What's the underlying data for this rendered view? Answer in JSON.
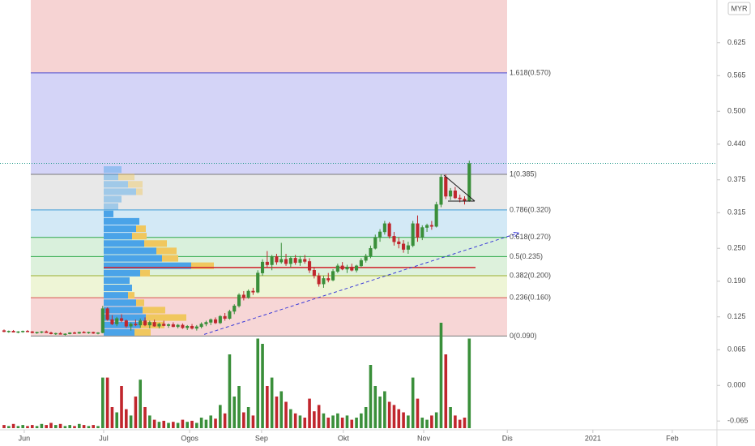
{
  "chart_data": {
    "type": "candlestick",
    "currency": "MYR",
    "xlim": [
      -0.86,
      151.7
    ],
    "xticks": [
      {
        "value": 4.3,
        "label": "Jun"
      },
      {
        "value": 21.2,
        "label": "Jul"
      },
      {
        "value": 39.5,
        "label": "Ogos"
      },
      {
        "value": 54.8,
        "label": "Sep"
      },
      {
        "value": 72.2,
        "label": "Okt"
      },
      {
        "value": 89.3,
        "label": "Nov"
      },
      {
        "value": 107.1,
        "label": "Dis"
      },
      {
        "value": 125.3,
        "label": "2021"
      },
      {
        "value": 142.2,
        "label": "Feb"
      }
    ],
    "ylim": [
      -0.081,
      0.703
    ],
    "yticks": [
      0.625,
      0.565,
      {
        "value": 0.5,
        "label": "0.500"
      },
      {
        "value": 0.44,
        "label": "0.440"
      },
      0.375,
      0.315,
      {
        "value": 0.25,
        "label": "0.250"
      },
      {
        "value": 0.19,
        "label": "0.190"
      },
      0.125,
      0.065,
      {
        "value": 0,
        "label": "0.000"
      },
      -0.065
    ],
    "up_color": "#3a8f3a",
    "down_color": "#c0262d",
    "open": [
      0.1,
      0.098,
      0.099,
      0.097,
      0.098,
      0.099,
      0.098,
      0.096,
      0.097,
      0.098,
      0.096,
      0.094,
      0.095,
      0.093,
      0.094,
      0.096,
      0.095,
      0.097,
      0.096,
      0.097,
      0.095,
      0.096,
      0.14,
      0.12,
      0.112,
      0.122,
      0.118,
      0.108,
      0.112,
      0.11,
      0.118,
      0.11,
      0.115,
      0.108,
      0.112,
      0.109,
      0.111,
      0.107,
      0.11,
      0.105,
      0.108,
      0.104,
      0.107,
      0.112,
      0.115,
      0.12,
      0.114,
      0.126,
      0.122,
      0.135,
      0.145,
      0.165,
      0.16,
      0.172,
      0.17,
      0.205,
      0.225,
      0.22,
      0.235,
      0.225,
      0.23,
      0.222,
      0.232,
      0.224,
      0.23,
      0.226,
      0.21,
      0.2,
      0.185,
      0.195,
      0.192,
      0.208,
      0.218,
      0.212,
      0.216,
      0.21,
      0.218,
      0.228,
      0.236,
      0.25,
      0.27,
      0.28,
      0.295,
      0.272,
      0.262,
      0.258,
      0.248,
      0.255,
      0.295,
      0.27,
      0.288,
      0.292,
      0.29,
      0.33,
      0.38,
      0.345,
      0.355,
      0.342,
      0.34,
      0.336
    ],
    "high": [
      0.102,
      0.1,
      0.101,
      0.099,
      0.1,
      0.101,
      0.099,
      0.098,
      0.099,
      0.1,
      0.098,
      0.096,
      0.097,
      0.095,
      0.097,
      0.098,
      0.098,
      0.099,
      0.098,
      0.098,
      0.097,
      0.145,
      0.142,
      0.128,
      0.125,
      0.13,
      0.12,
      0.115,
      0.12,
      0.122,
      0.124,
      0.118,
      0.12,
      0.114,
      0.118,
      0.113,
      0.115,
      0.112,
      0.113,
      0.11,
      0.112,
      0.11,
      0.115,
      0.118,
      0.122,
      0.124,
      0.128,
      0.132,
      0.138,
      0.148,
      0.168,
      0.172,
      0.175,
      0.178,
      0.21,
      0.23,
      0.245,
      0.238,
      0.24,
      0.26,
      0.24,
      0.235,
      0.238,
      0.236,
      0.238,
      0.232,
      0.215,
      0.205,
      0.2,
      0.205,
      0.212,
      0.222,
      0.225,
      0.22,
      0.222,
      0.22,
      0.232,
      0.24,
      0.255,
      0.275,
      0.285,
      0.3,
      0.298,
      0.28,
      0.27,
      0.265,
      0.262,
      0.3,
      0.31,
      0.292,
      0.295,
      0.3,
      0.335,
      0.385,
      0.385,
      0.36,
      0.362,
      0.348,
      0.345,
      0.41
    ],
    "low": [
      0.097,
      0.096,
      0.097,
      0.095,
      0.096,
      0.097,
      0.095,
      0.094,
      0.095,
      0.096,
      0.093,
      0.092,
      0.093,
      0.091,
      0.093,
      0.094,
      0.094,
      0.095,
      0.094,
      0.094,
      0.093,
      0.095,
      0.118,
      0.11,
      0.108,
      0.115,
      0.105,
      0.1,
      0.108,
      0.105,
      0.108,
      0.104,
      0.107,
      0.104,
      0.108,
      0.105,
      0.106,
      0.104,
      0.103,
      0.101,
      0.102,
      0.1,
      0.104,
      0.108,
      0.11,
      0.112,
      0.112,
      0.118,
      0.12,
      0.13,
      0.142,
      0.155,
      0.158,
      0.165,
      0.168,
      0.2,
      0.215,
      0.21,
      0.22,
      0.222,
      0.218,
      0.215,
      0.22,
      0.218,
      0.222,
      0.205,
      0.195,
      0.18,
      0.178,
      0.188,
      0.19,
      0.205,
      0.21,
      0.205,
      0.208,
      0.206,
      0.215,
      0.224,
      0.232,
      0.248,
      0.262,
      0.275,
      0.268,
      0.255,
      0.25,
      0.242,
      0.24,
      0.252,
      0.262,
      0.265,
      0.28,
      0.284,
      0.288,
      0.325,
      0.34,
      0.338,
      0.34,
      0.334,
      0.33,
      0.335
    ],
    "close": [
      0.098,
      0.099,
      0.097,
      0.098,
      0.099,
      0.098,
      0.096,
      0.097,
      0.098,
      0.096,
      0.094,
      0.095,
      0.093,
      0.094,
      0.096,
      0.095,
      0.097,
      0.096,
      0.097,
      0.095,
      0.096,
      0.14,
      0.12,
      0.112,
      0.122,
      0.118,
      0.108,
      0.112,
      0.11,
      0.118,
      0.11,
      0.115,
      0.108,
      0.112,
      0.109,
      0.111,
      0.107,
      0.11,
      0.105,
      0.108,
      0.104,
      0.107,
      0.112,
      0.115,
      0.12,
      0.114,
      0.126,
      0.122,
      0.135,
      0.145,
      0.165,
      0.16,
      0.172,
      0.17,
      0.205,
      0.225,
      0.22,
      0.235,
      0.225,
      0.23,
      0.222,
      0.232,
      0.224,
      0.23,
      0.226,
      0.21,
      0.2,
      0.185,
      0.195,
      0.192,
      0.208,
      0.218,
      0.212,
      0.216,
      0.21,
      0.218,
      0.228,
      0.236,
      0.25,
      0.27,
      0.28,
      0.295,
      0.272,
      0.262,
      0.258,
      0.248,
      0.255,
      0.295,
      0.27,
      0.288,
      0.292,
      0.29,
      0.33,
      0.38,
      0.345,
      0.355,
      0.342,
      0.34,
      0.336,
      0.405
    ],
    "volume": [
      3,
      2,
      4,
      2,
      3,
      2,
      3,
      2,
      4,
      3,
      5,
      3,
      4,
      2,
      3,
      2,
      4,
      3,
      2,
      3,
      2,
      48,
      48,
      20,
      15,
      40,
      18,
      12,
      30,
      46,
      20,
      12,
      8,
      6,
      7,
      5,
      6,
      5,
      8,
      6,
      7,
      5,
      10,
      8,
      12,
      9,
      22,
      14,
      70,
      30,
      40,
      15,
      20,
      12,
      85,
      80,
      40,
      48,
      30,
      35,
      25,
      18,
      14,
      12,
      10,
      28,
      16,
      22,
      14,
      10,
      12,
      14,
      10,
      12,
      8,
      10,
      14,
      20,
      60,
      40,
      30,
      35,
      25,
      22,
      18,
      15,
      12,
      48,
      28,
      10,
      8,
      12,
      15,
      100,
      70,
      20,
      12,
      8,
      10,
      85
    ],
    "fib_levels": [
      {
        "label": "1.618(0.570)",
        "value": 0.57,
        "color": "#4a4ad0",
        "fill": "#d4d4f7"
      },
      {
        "label": "1(0.385)",
        "value": 0.385,
        "color": "#7a7a7a",
        "fill": "#e8e8e8"
      },
      {
        "label": "0.786(0.320)",
        "value": 0.32,
        "color": "#3d9bd6",
        "fill": "#d3e9f6"
      },
      {
        "label": "0.618(0.270)",
        "value": 0.27,
        "color": "#2ea84a",
        "fill": "#d9f0dc"
      },
      {
        "label": "0.5(0.235)",
        "value": 0.235,
        "color": "#2ea84a",
        "fill": "#ddf1dc"
      },
      {
        "label": "0.382(0.200)",
        "value": 0.2,
        "color": "#9bb02e",
        "fill": "#eef5d6"
      },
      {
        "label": "0.236(0.160)",
        "value": 0.16,
        "color": "#d9534f",
        "fill": "#f7d6d6"
      },
      {
        "label": "0(0.090)",
        "value": 0.09,
        "color": "#7a7a7a"
      }
    ],
    "volume_profile": {
      "bins": [
        0.09,
        0.1035,
        0.117,
        0.1305,
        0.144,
        0.1575,
        0.171,
        0.1845,
        0.198,
        0.2115,
        0.225,
        0.2385,
        0.252,
        0.2655,
        0.279,
        0.2925,
        0.306,
        0.3195,
        0.333,
        0.3465,
        0.36,
        0.3735,
        0.387,
        0.4005
      ],
      "up": [
        38,
        45,
        52,
        48,
        40,
        30,
        35,
        32,
        45,
        108,
        72,
        65,
        50,
        35,
        40,
        44,
        12,
        18,
        22,
        40,
        30,
        18,
        22
      ],
      "down": [
        20,
        30,
        50,
        28,
        10,
        8,
        0,
        0,
        12,
        28,
        20,
        25,
        28,
        18,
        12,
        0,
        0,
        0,
        0,
        8,
        18,
        20,
        0
      ],
      "up_color": "#4aa3e8",
      "down_color": "#f0c75e"
    },
    "poc": 0.215,
    "poc_color": "#d0202a",
    "trendline": {
      "x": [
        42.6,
        109.5
      ],
      "y": [
        0.093,
        0.278
      ],
      "color": "#3b3bd8"
    }
  }
}
